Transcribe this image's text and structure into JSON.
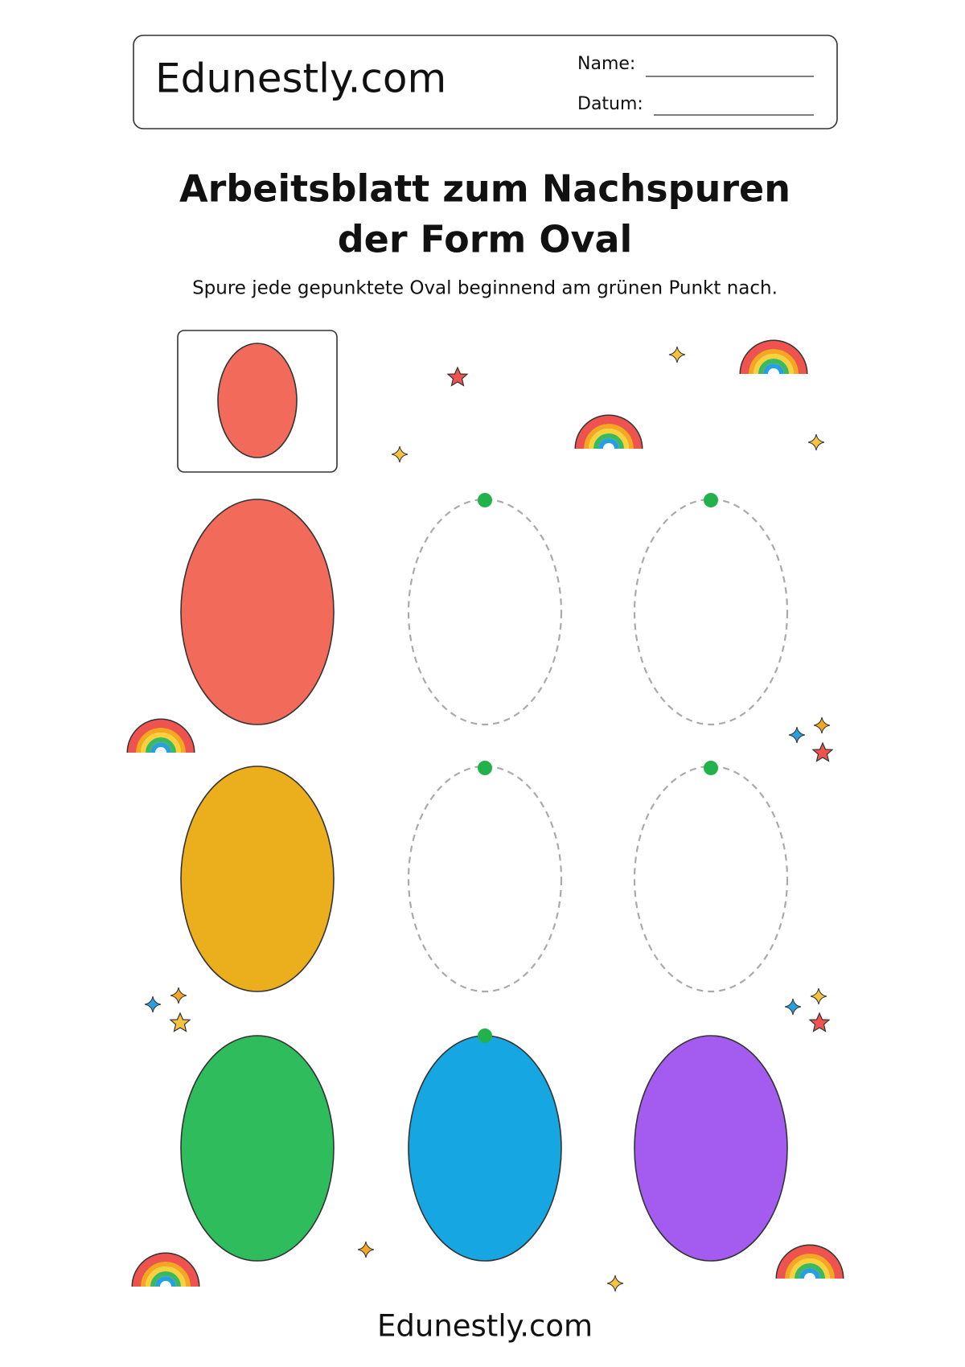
{
  "header": {
    "brand": "Edunestly.com",
    "name_label": "Name:",
    "date_label": "Datum:"
  },
  "title_lines": [
    "Arbeitsblatt zum Nachspuren",
    "der Form Oval"
  ],
  "instructions": "Spure jede gepunktete Oval beginnend am grünen Punkt nach.",
  "footer": "Edunestly.com"
}
